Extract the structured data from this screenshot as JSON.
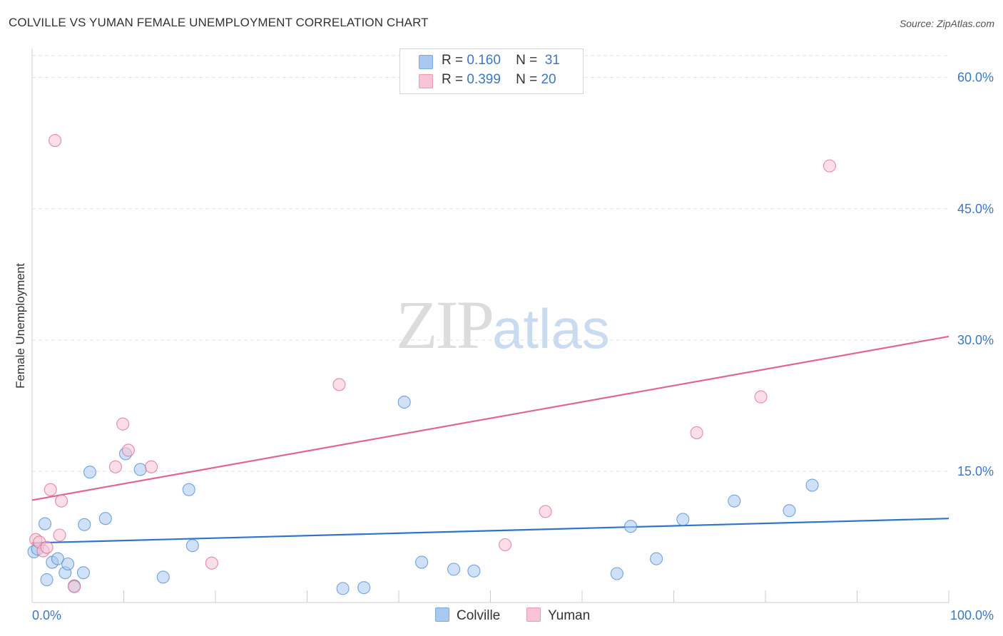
{
  "header": {
    "title": "COLVILLE VS YUMAN FEMALE UNEMPLOYMENT CORRELATION CHART",
    "source": "Source: ZipAtlas.com"
  },
  "watermark": {
    "zip": "ZIP",
    "atlas": "atlas"
  },
  "legend": {
    "rows": [
      {
        "r_label": "R =",
        "r_value": "0.160",
        "n_label": "N =",
        "n_value": "31",
        "color": "#a9c8f0",
        "border": "#7aaae0"
      },
      {
        "r_label": "R =",
        "r_value": "0.399",
        "n_label": "N =",
        "n_value": "20",
        "color": "#f8c4d4",
        "border": "#ee9ab4"
      }
    ]
  },
  "bottom_legend": {
    "colville": "Colville",
    "yuman": "Yuman"
  },
  "chart_data": {
    "type": "scatter",
    "title": "COLVILLE VS YUMAN FEMALE UNEMPLOYMENT CORRELATION CHART",
    "xlabel": "",
    "ylabel": "Female Unemployment",
    "xlim": [
      0,
      100
    ],
    "ylim": [
      0,
      62.5
    ],
    "x_tick_labels": [
      "0.0%",
      "100.0%"
    ],
    "y_ticks": [
      15,
      30,
      45,
      60
    ],
    "y_tick_labels": [
      "15.0%",
      "30.0%",
      "45.0%",
      "60.0%"
    ],
    "grid": true,
    "series": [
      {
        "name": "Colville",
        "color": "#4a87d6",
        "fill": "#a9c8f0",
        "trend": {
          "x0": 0,
          "y0": 6.8,
          "x1": 100,
          "y1": 9.6
        },
        "points": [
          [
            0.2,
            5.8
          ],
          [
            0.6,
            6.1
          ],
          [
            1.4,
            9.0
          ],
          [
            1.6,
            2.6
          ],
          [
            2.2,
            4.6
          ],
          [
            2.8,
            5.0
          ],
          [
            3.6,
            3.4
          ],
          [
            3.9,
            4.4
          ],
          [
            4.6,
            1.9
          ],
          [
            5.6,
            3.4
          ],
          [
            5.7,
            8.9
          ],
          [
            6.3,
            14.9
          ],
          [
            8.0,
            9.6
          ],
          [
            10.2,
            17.0
          ],
          [
            11.8,
            15.2
          ],
          [
            14.3,
            2.9
          ],
          [
            17.1,
            12.9
          ],
          [
            17.5,
            6.5
          ],
          [
            33.9,
            1.6
          ],
          [
            36.2,
            1.7
          ],
          [
            40.6,
            22.9
          ],
          [
            42.5,
            4.6
          ],
          [
            46.0,
            3.8
          ],
          [
            48.2,
            3.6
          ],
          [
            63.8,
            3.3
          ],
          [
            65.3,
            8.7
          ],
          [
            68.1,
            5.0
          ],
          [
            71.0,
            9.5
          ],
          [
            76.6,
            11.6
          ],
          [
            82.6,
            10.5
          ],
          [
            85.1,
            13.4
          ]
        ]
      },
      {
        "name": "Yuman",
        "color": "#e0668e",
        "fill": "#f8c4d4",
        "trend": {
          "x0": 0,
          "y0": 11.7,
          "x1": 100,
          "y1": 30.4
        },
        "points": [
          [
            0.4,
            7.2
          ],
          [
            0.8,
            6.9
          ],
          [
            1.2,
            5.9
          ],
          [
            1.6,
            6.3
          ],
          [
            2.0,
            12.9
          ],
          [
            2.5,
            52.8
          ],
          [
            3.0,
            7.7
          ],
          [
            3.2,
            11.6
          ],
          [
            4.6,
            1.8
          ],
          [
            9.1,
            15.5
          ],
          [
            9.9,
            20.4
          ],
          [
            10.5,
            17.4
          ],
          [
            13.0,
            15.5
          ],
          [
            19.6,
            4.5
          ],
          [
            33.5,
            24.9
          ],
          [
            51.6,
            6.6
          ],
          [
            56.0,
            10.4
          ],
          [
            72.5,
            19.4
          ],
          [
            79.5,
            23.5
          ],
          [
            87.0,
            49.9
          ]
        ]
      }
    ]
  }
}
